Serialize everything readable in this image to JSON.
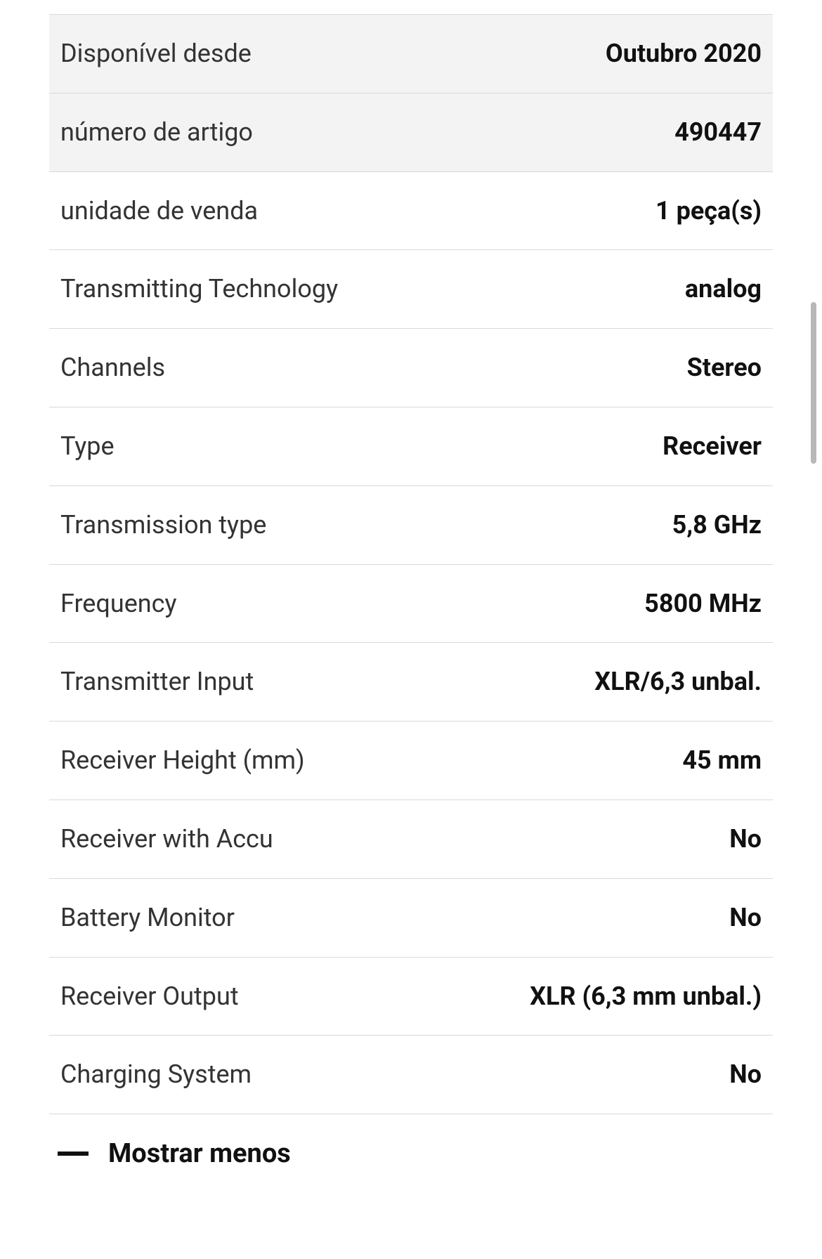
{
  "specs": {
    "rows": [
      {
        "label": "Disponível desde",
        "value": "Outubro 2020",
        "highlight": true
      },
      {
        "label": "número de artigo",
        "value": "490447",
        "highlight": true
      },
      {
        "label": "unidade de venda",
        "value": "1 peça(s)",
        "highlight": false
      },
      {
        "label": "Transmitting Technology",
        "value": "analog",
        "highlight": false
      },
      {
        "label": "Channels",
        "value": "Stereo",
        "highlight": false
      },
      {
        "label": "Type",
        "value": "Receiver",
        "highlight": false
      },
      {
        "label": "Transmission type",
        "value": "5,8 GHz",
        "highlight": false
      },
      {
        "label": "Frequency",
        "value": "5800 MHz",
        "highlight": false
      },
      {
        "label": "Transmitter Input",
        "value": "XLR/6,3 unbal.",
        "highlight": false
      },
      {
        "label": "Receiver Height (mm)",
        "value": "45 mm",
        "highlight": false
      },
      {
        "label": "Receiver with Accu",
        "value": "No",
        "highlight": false
      },
      {
        "label": "Battery Monitor",
        "value": "No",
        "highlight": false
      },
      {
        "label": "Receiver Output",
        "value": "XLR (6,3 mm unbal.)",
        "highlight": false
      },
      {
        "label": "Charging System",
        "value": "No",
        "highlight": false
      }
    ]
  },
  "toggle": {
    "label": "Mostrar menos"
  },
  "colors": {
    "border": "#d9d9d9",
    "highlight_bg": "#f3f3f3",
    "text": "#333333",
    "value": "#111111",
    "scrollbar": "#b8b8b8"
  }
}
